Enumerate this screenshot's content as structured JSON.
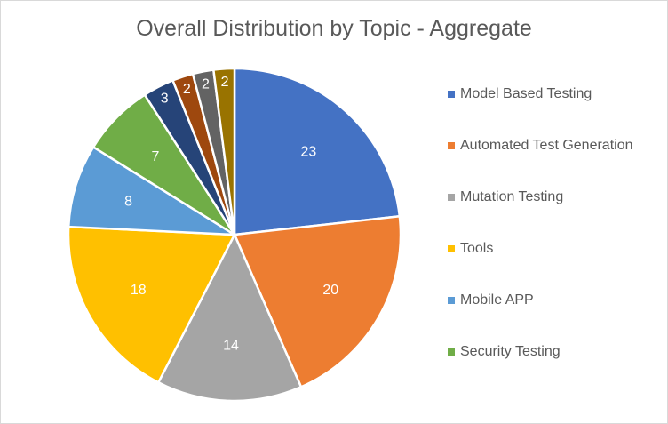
{
  "chart_data": {
    "type": "pie",
    "title": "Overall Distribution by Topic - Aggregate",
    "slices": [
      {
        "label": "Model Based Testing",
        "value": 23,
        "color": "#4472C4"
      },
      {
        "label": "Automated Test Generation",
        "value": 20,
        "color": "#ED7D31"
      },
      {
        "label": "Mutation Testing",
        "value": 14,
        "color": "#A5A5A5"
      },
      {
        "label": "Tools",
        "value": 18,
        "color": "#FFC000"
      },
      {
        "label": "Mobile APP",
        "value": 8,
        "color": "#5B9BD5"
      },
      {
        "label": "Security Testing",
        "value": 7,
        "color": "#70AD47"
      },
      {
        "label": "",
        "value": 3,
        "color": "#264478"
      },
      {
        "label": "",
        "value": 2,
        "color": "#9E480E"
      },
      {
        "label": "",
        "value": 2,
        "color": "#636363"
      },
      {
        "label": "",
        "value": 2,
        "color": "#997300"
      }
    ],
    "legend": [
      "Model Based Testing",
      "Automated Test Generation",
      "Mutation Testing",
      "Tools",
      "Mobile APP",
      "Security Testing"
    ],
    "legend_position": "right",
    "data_labels": true
  }
}
